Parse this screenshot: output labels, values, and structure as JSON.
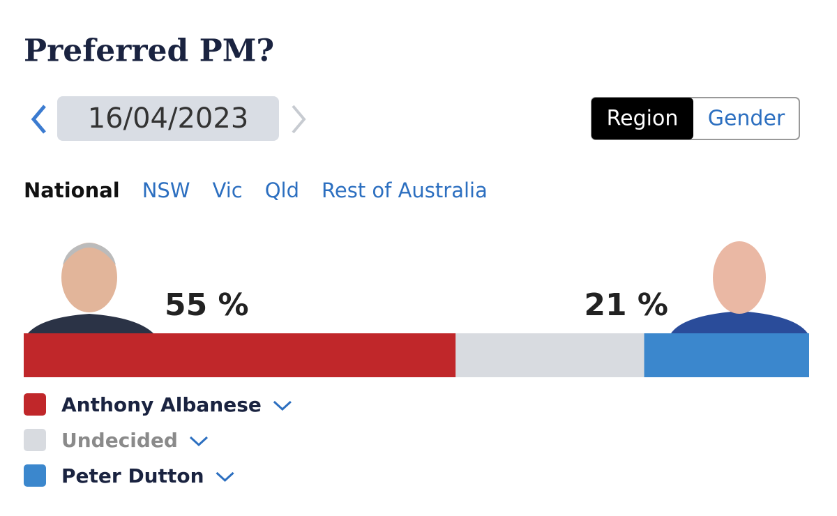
{
  "header": {
    "title": "Preferred PM?",
    "date": "16/04/2023"
  },
  "toggle": [
    "Region",
    "Gender"
  ],
  "tabs": [
    "National",
    "NSW",
    "Vic",
    "Qld",
    "Rest of Australia"
  ],
  "chart_data": {
    "type": "stacked-bar",
    "xlim": [
      0,
      100
    ],
    "series": [
      {
        "name": "Anthony Albanese",
        "color": "#c0272a",
        "values": [
          55
        ],
        "value_labels": [
          "55 %"
        ]
      },
      {
        "name": "Undecided",
        "color": "#d8dbe0",
        "values": [
          24
        ]
      },
      {
        "name": "Peter Dutton",
        "color": "#3b87cd",
        "values": [
          21
        ],
        "value_labels": [
          "21 %"
        ]
      }
    ]
  }
}
